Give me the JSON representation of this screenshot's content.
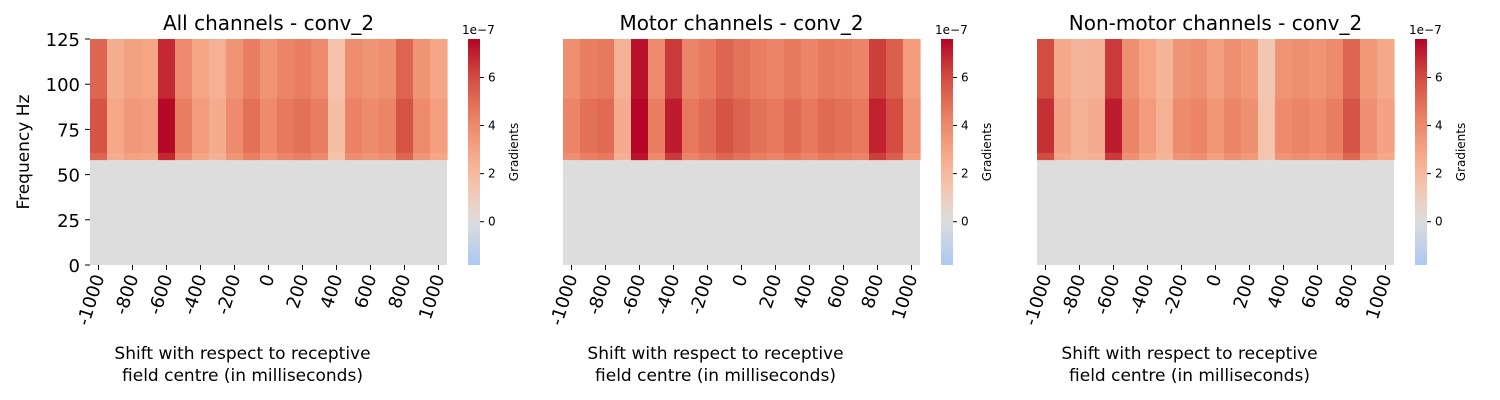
{
  "chart_data": [
    {
      "type": "heatmap",
      "title": "All channels - conv_2",
      "ylabel": "Frequency Hz",
      "xlabel_lines": [
        "Shift with respect to receptive",
        "field centre (in milliseconds)"
      ],
      "x_ticks": [
        "-1000",
        "-800",
        "-600",
        "-400",
        "-200",
        "0",
        "200",
        "400",
        "600",
        "800",
        "1000"
      ],
      "y_ticks": [
        "125",
        "100",
        "75",
        "50",
        "25",
        "0"
      ],
      "x_range": [
        -1000,
        1000
      ],
      "y_range": [
        0,
        125
      ],
      "colorbar": {
        "label": "Gradients",
        "exponent": "1e−7",
        "ticks": [
          "6",
          "4",
          "2",
          "0"
        ],
        "range": [
          -1.8,
          7.6
        ],
        "colormap": "coolwarm",
        "center": 0
      },
      "columns": [
        -1000,
        -900,
        -800,
        -700,
        -600,
        -500,
        -400,
        -300,
        -200,
        -100,
        0,
        100,
        200,
        300,
        400,
        500,
        600,
        700,
        800,
        900,
        1000
      ],
      "high_freq_band": [
        58,
        125
      ],
      "low_freq_band_value": 0,
      "values_high_band": [
        5.2,
        2.6,
        3.1,
        3.0,
        6.8,
        4.0,
        3.0,
        2.4,
        3.6,
        4.4,
        3.6,
        4.2,
        4.4,
        4.0,
        1.6,
        3.9,
        3.6,
        3.8,
        5.2,
        3.6,
        2.9
      ]
    },
    {
      "type": "heatmap",
      "title": "Motor channels - conv_2",
      "xlabel_lines": [
        "Shift with respect to receptive",
        "field centre (in milliseconds)"
      ],
      "x_ticks": [
        "-1000",
        "-800",
        "-600",
        "-400",
        "-200",
        "0",
        "200",
        "400",
        "600",
        "800",
        "1000"
      ],
      "x_range": [
        -1000,
        1000
      ],
      "y_range": [
        0,
        125
      ],
      "colorbar": {
        "label": "Gradients",
        "exponent": "1e−7",
        "ticks": [
          "6",
          "4",
          "2",
          "0"
        ],
        "range": [
          -1.8,
          7.6
        ],
        "colormap": "coolwarm",
        "center": 0
      },
      "columns": [
        -1000,
        -900,
        -800,
        -700,
        -600,
        -500,
        -400,
        -300,
        -200,
        -100,
        0,
        100,
        200,
        300,
        400,
        500,
        600,
        700,
        800,
        900,
        1000
      ],
      "high_freq_band": [
        58,
        125
      ],
      "low_freq_band_value": 0,
      "values_high_band": [
        3.8,
        4.4,
        4.6,
        2.4,
        7.3,
        4.0,
        6.4,
        4.2,
        4.6,
        5.2,
        4.8,
        4.4,
        4.2,
        4.6,
        4.2,
        4.6,
        4.4,
        4.2,
        6.3,
        5.4,
        3.3
      ]
    },
    {
      "type": "heatmap",
      "title": "Non-motor channels - conv_2",
      "xlabel_lines": [
        "Shift with respect to receptive",
        "field centre (in milliseconds)"
      ],
      "x_ticks": [
        "-1000",
        "-800",
        "-600",
        "-400",
        "-200",
        "0",
        "200",
        "400",
        "600",
        "800",
        "1000"
      ],
      "x_range": [
        -1000,
        1000
      ],
      "y_range": [
        0,
        125
      ],
      "colorbar": {
        "label": "Gradients",
        "exponent": "1e−7",
        "ticks": [
          "6",
          "4",
          "2",
          "0"
        ],
        "range": [
          -1.8,
          7.6
        ],
        "colormap": "coolwarm",
        "center": 0
      },
      "columns": [
        -1000,
        -900,
        -800,
        -700,
        -600,
        -500,
        -400,
        -300,
        -200,
        -100,
        0,
        100,
        200,
        300,
        400,
        500,
        600,
        700,
        800,
        900,
        1000
      ],
      "high_freq_band": [
        58,
        125
      ],
      "low_freq_band_value": 0,
      "values_high_band": [
        6.0,
        2.8,
        2.2,
        2.4,
        6.4,
        3.8,
        3.0,
        2.2,
        3.6,
        3.8,
        3.2,
        3.8,
        3.4,
        1.4,
        3.6,
        3.8,
        3.6,
        4.0,
        5.2,
        3.4,
        2.8
      ]
    }
  ]
}
